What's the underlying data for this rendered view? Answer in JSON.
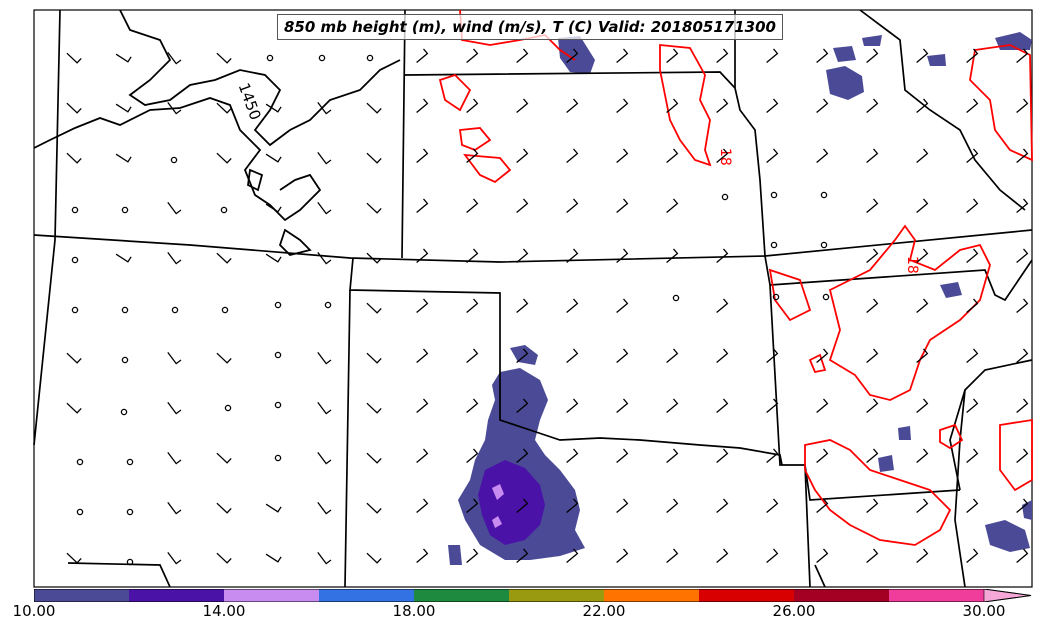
{
  "title": "850 mb height (m), wind (m/s), T (C) Valid: 201805171300",
  "contour_labels": {
    "height": "1450",
    "temp_a": "18",
    "temp_b": "18"
  },
  "colorbar": {
    "colors": [
      "#4a4a96",
      "#4b12a8",
      "#c88cf0",
      "#3272e2",
      "#1e8a40",
      "#9a9a10",
      "#ff7300",
      "#d80000",
      "#a40024",
      "#f03c9a"
    ],
    "extend_color": "#f5a8d8",
    "tick_labels": [
      "10.00",
      "14.00",
      "18.00",
      "22.00",
      "26.00",
      "30.00"
    ]
  },
  "colors": {
    "height_contour": "#000000",
    "temp_contour": "#ff0000",
    "state_borders": "#000000",
    "precip_light": "#4a4a96",
    "precip_mid": "#4b12a8",
    "precip_heavy": "#c88cf0"
  }
}
